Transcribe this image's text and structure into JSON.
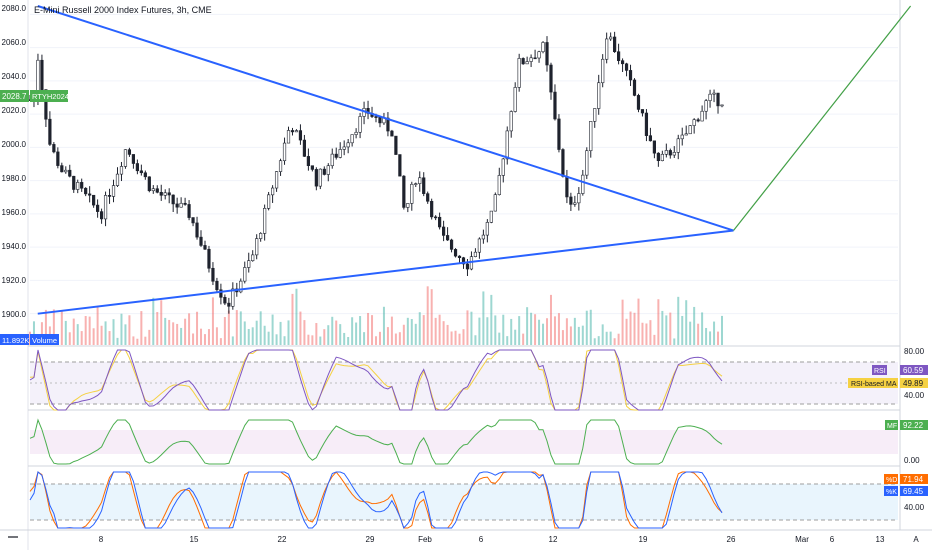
{
  "header": {
    "title": "E-Mini Russell 2000 Index Futures, 3h, CME"
  },
  "price_axis": {
    "labels": [
      "2080.0",
      "2060.0",
      "2040.0",
      "2020.0",
      "2000.0",
      "1980.0",
      "1960.0",
      "1940.0",
      "1920.0",
      "1900.0"
    ],
    "last_price_tag": "2028.7",
    "symbol_tag": "RTYH2024",
    "volume_tag": "11.892K",
    "volume_label": "Volume"
  },
  "rsi_panel": {
    "axis_labels": [
      "80.00",
      "40.00"
    ],
    "rsi_tag": "RSI",
    "rsi_value": "60.59",
    "ma_tag": "RSI-based MA",
    "ma_value": "49.89"
  },
  "mf_panel": {
    "axis_labels": [
      "0.00"
    ],
    "mf_tag": "MF",
    "mf_value": "92.22"
  },
  "stoch_panel": {
    "axis_labels": [
      "40.00"
    ],
    "d_tag": "%D",
    "d_value": "71.94",
    "k_tag": "%K",
    "k_value": "69.45"
  },
  "time_axis": {
    "labels": [
      "8",
      "15",
      "22",
      "29",
      "Feb",
      "6",
      "12",
      "19",
      "26",
      "Mar",
      "6",
      "13"
    ],
    "auto_label": "A"
  },
  "colors": {
    "up": "#26a69a",
    "down": "#ef5350",
    "candle": "#1e222d",
    "trendline": "#2962ff",
    "projection": "#43a047",
    "rsi": "#7e57c2",
    "rsi_ma": "#f5d142",
    "mf": "#4caf50",
    "stoch_k": "#2962ff",
    "stoch_d": "#ff6d00"
  },
  "chart_data": {
    "type": "candlestick",
    "title": "E-Mini Russell 2000 Index Futures, 3h, CME",
    "symbol": "RTYH2024",
    "ylim": [
      1895,
      2085
    ],
    "last_price": 2028.7,
    "close_path": {
      "dates": [
        "Jan 3",
        "Jan 4",
        "Jan 5",
        "Jan 8",
        "Jan 10",
        "Jan 12",
        "Jan 15",
        "Jan 17",
        "Jan 18",
        "Jan 20",
        "Jan 23",
        "Jan 25",
        "Jan 27",
        "Jan 29",
        "Jan 31",
        "Feb 1",
        "Feb 2",
        "Feb 4",
        "Feb 6",
        "Feb 8",
        "Feb 10",
        "Feb 12",
        "Feb 14",
        "Feb 15",
        "Feb 17",
        "Feb 19",
        "Feb 21",
        "Feb 23",
        "Feb 25"
      ],
      "close": [
        2055,
        2000,
        1985,
        1960,
        2000,
        1975,
        1960,
        1920,
        1905,
        1935,
        2015,
        1980,
        2000,
        2022,
        2010,
        1960,
        1985,
        1945,
        1930,
        1960,
        2050,
        2060,
        1960,
        1980,
        2070,
        2035,
        1990,
        2005,
        2028.7
      ]
    },
    "volume": {
      "label": "Volume",
      "last": "11.892K"
    },
    "trendlines": [
      {
        "from": {
          "date": "Jan 3",
          "price": 2085
        },
        "to": {
          "date": "Feb 27",
          "price": 1950
        }
      },
      {
        "from": {
          "date": "Jan 3",
          "price": 1900
        },
        "to": {
          "date": "Feb 27",
          "price": 1950
        }
      },
      {
        "from": {
          "date": "Feb 27",
          "price": 1950
        },
        "to": {
          "date": "Mar 12",
          "price": 2085
        }
      }
    ],
    "indicators": {
      "rsi": {
        "value": 60.59,
        "ma": 49.89,
        "bands": [
          70,
          30
        ],
        "ylim": [
          20,
          85
        ]
      },
      "mf": {
        "value": 92.22
      },
      "stoch": {
        "k": 69.45,
        "d": 71.94,
        "bands": [
          80,
          20
        ]
      }
    }
  }
}
